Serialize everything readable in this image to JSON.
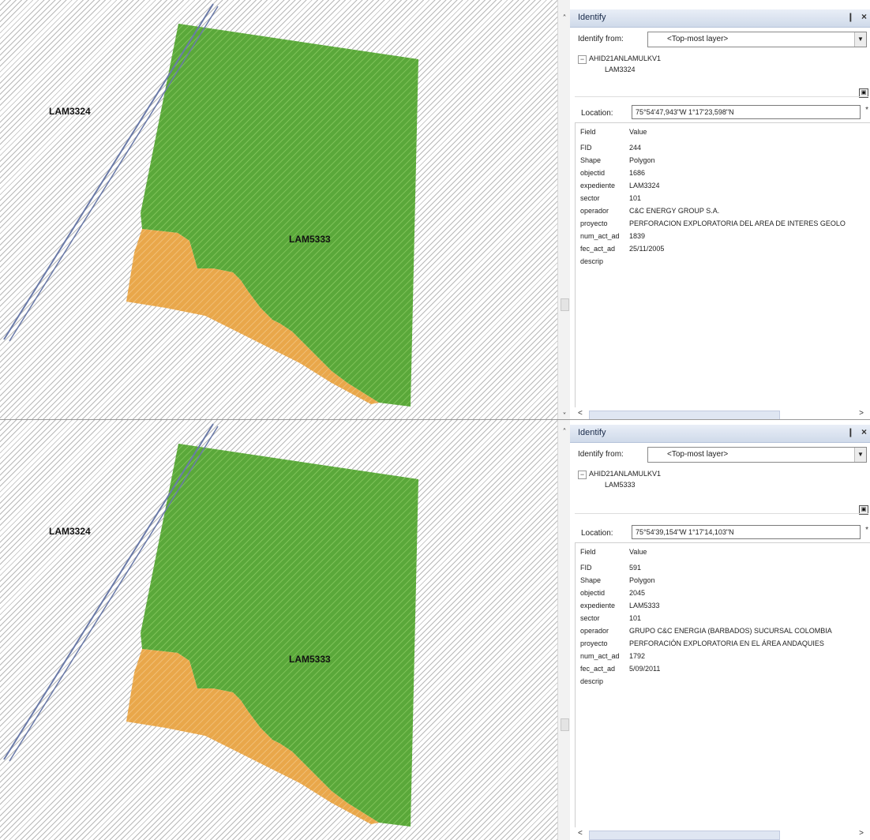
{
  "panels": [
    {
      "map": {
        "label_left": "LAM3324",
        "label_center": "LAM5333"
      },
      "identify": {
        "title": "Identify",
        "pin_glyph": "❙",
        "close_glyph": "×",
        "identify_from_label": "Identify from:",
        "identify_from_value": "<Top-most layer>",
        "tree_expand_glyph": "−",
        "layer_name": "AHID21ANLAMULKV1",
        "feature_name": "LAM3324",
        "location_label": "Location:",
        "location_value": "75°54'47,943\"W  1°17'23,598\"N",
        "field_header": "Field",
        "value_header": "Value",
        "rows": [
          {
            "field": "FID",
            "value": "244"
          },
          {
            "field": "Shape",
            "value": "Polygon"
          },
          {
            "field": "objectid",
            "value": "1686"
          },
          {
            "field": "expediente",
            "value": "LAM3324"
          },
          {
            "field": "sector",
            "value": "101"
          },
          {
            "field": "operador",
            "value": "C&C ENERGY GROUP S.A."
          },
          {
            "field": "proyecto",
            "value": "PERFORACION EXPLORATORIA DEL AREA DE INTERES GEOLO"
          },
          {
            "field": "num_act_ad",
            "value": "1839"
          },
          {
            "field": "fec_act_ad",
            "value": "25/11/2005"
          },
          {
            "field": "descrip",
            "value": ""
          }
        ]
      }
    },
    {
      "map": {
        "label_left": "LAM3324",
        "label_center": "LAM5333"
      },
      "identify": {
        "title": "Identify",
        "pin_glyph": "❙",
        "close_glyph": "×",
        "identify_from_label": "Identify from:",
        "identify_from_value": "<Top-most layer>",
        "tree_expand_glyph": "−",
        "layer_name": "AHID21ANLAMULKV1",
        "feature_name": "LAM5333",
        "location_label": "Location:",
        "location_value": "75°54'39,154\"W  1°17'14,103\"N",
        "field_header": "Field",
        "value_header": "Value",
        "rows": [
          {
            "field": "FID",
            "value": "591"
          },
          {
            "field": "Shape",
            "value": "Polygon"
          },
          {
            "field": "objectid",
            "value": "2045"
          },
          {
            "field": "expediente",
            "value": "LAM5333"
          },
          {
            "field": "sector",
            "value": "101"
          },
          {
            "field": "operador",
            "value": "GRUPO C&C ENERGIA (BARBADOS) SUCURSAL COLOMBIA"
          },
          {
            "field": "proyecto",
            "value": "PERFORACIÓN EXPLORATORIA EN EL ÁREA ANDAQUIES"
          },
          {
            "field": "num_act_ad",
            "value": "1792"
          },
          {
            "field": "fec_act_ad",
            "value": "5/09/2011"
          },
          {
            "field": "descrip",
            "value": ""
          }
        ]
      }
    }
  ],
  "colors": {
    "green_zone": "#5aa83a",
    "orange_zone": "#e9a74a",
    "hatch": "#b8b8b8",
    "road": "#6a7aa8"
  },
  "icons": {
    "scroll_up": "˄",
    "scroll_down": "˅",
    "scroll_left": "<",
    "scroll_right": ">",
    "dropdown": "▼",
    "panel_toggle": "▣",
    "location_menu": "*"
  }
}
